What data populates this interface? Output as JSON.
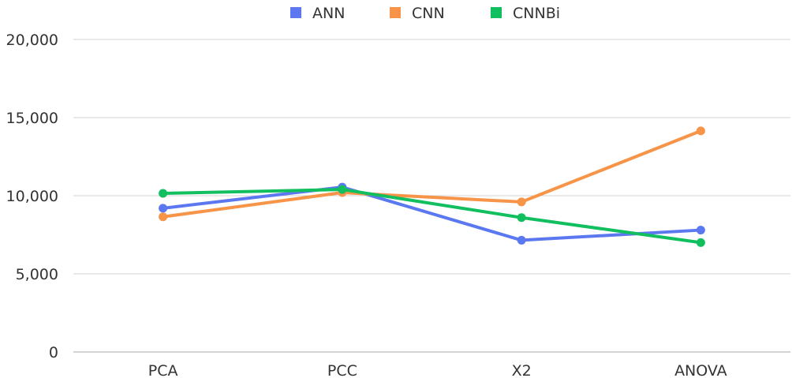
{
  "chart_data": {
    "type": "line",
    "categories": [
      "PCA",
      "PCC",
      "X2",
      "ANOVA"
    ],
    "series": [
      {
        "name": "ANN",
        "color": "#5b78f0",
        "values": [
          9200,
          10550,
          7150,
          7800
        ]
      },
      {
        "name": "CNN",
        "color": "#f79448",
        "values": [
          8650,
          10200,
          9600,
          14150
        ]
      },
      {
        "name": "CNNBi",
        "color": "#12bf5f",
        "values": [
          10150,
          10400,
          8600,
          7000
        ]
      }
    ],
    "yticks": [
      "0",
      "5,000",
      "10,000",
      "15,000",
      "20,000"
    ],
    "ylim": [
      0,
      20000
    ],
    "grid": true,
    "legend_position": "top-center"
  }
}
